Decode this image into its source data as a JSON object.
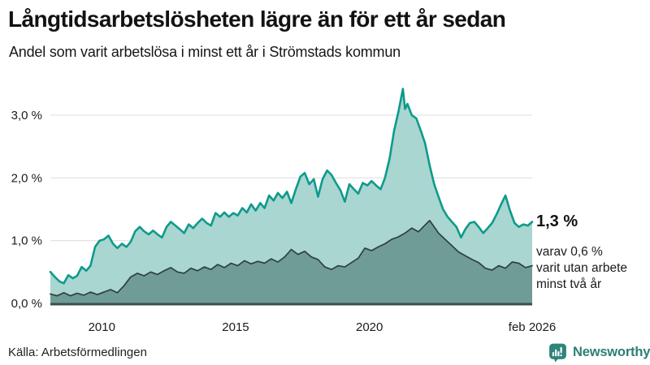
{
  "header": {
    "title": "Långtidsarbetslösheten lägre än för ett år sedan",
    "subtitle": "Andel som varit arbetslösa i minst ett år i Strömstads kommun"
  },
  "chart_data": {
    "type": "area",
    "title": "Långtidsarbetslösheten lägre än för ett år sedan",
    "subtitle": "Andel som varit arbetslösa i minst ett år i Strömstads kommun",
    "x_unit": "decimal_year (monthly data, feb 2008 - feb 2026)",
    "x_range": [
      2008.08,
      2026.08
    ],
    "ylim": [
      0,
      3.5
    ],
    "grid": true,
    "legend_position": "none (direct labels at line end)",
    "y_ticks": [
      {
        "value": 0,
        "label": "0,0 %"
      },
      {
        "value": 1,
        "label": "1,0 %"
      },
      {
        "value": 2,
        "label": "2,0 %"
      },
      {
        "value": 3,
        "label": "3,0 %"
      }
    ],
    "x_ticks": [
      {
        "value": 2010,
        "label": "2010"
      },
      {
        "value": 2015,
        "label": "2015"
      },
      {
        "value": 2020,
        "label": "2020"
      },
      {
        "value": 2026.08,
        "label": "feb 2026"
      }
    ],
    "series": [
      {
        "name": "Andel arbetslösa minst ett år",
        "end_value_pct": 1.3,
        "line_color": "#0e9a8c",
        "fill_color": "#a9d6d0",
        "points": [
          [
            2008.08,
            0.5
          ],
          [
            2008.25,
            0.42
          ],
          [
            2008.42,
            0.35
          ],
          [
            2008.58,
            0.32
          ],
          [
            2008.75,
            0.45
          ],
          [
            2008.92,
            0.4
          ],
          [
            2009.08,
            0.44
          ],
          [
            2009.25,
            0.58
          ],
          [
            2009.42,
            0.52
          ],
          [
            2009.58,
            0.6
          ],
          [
            2009.75,
            0.9
          ],
          [
            2009.92,
            1.0
          ],
          [
            2010.08,
            1.02
          ],
          [
            2010.25,
            1.08
          ],
          [
            2010.42,
            0.95
          ],
          [
            2010.58,
            0.88
          ],
          [
            2010.75,
            0.95
          ],
          [
            2010.92,
            0.9
          ],
          [
            2011.08,
            0.98
          ],
          [
            2011.25,
            1.15
          ],
          [
            2011.42,
            1.22
          ],
          [
            2011.58,
            1.15
          ],
          [
            2011.75,
            1.1
          ],
          [
            2011.92,
            1.16
          ],
          [
            2012.08,
            1.1
          ],
          [
            2012.25,
            1.05
          ],
          [
            2012.42,
            1.22
          ],
          [
            2012.58,
            1.3
          ],
          [
            2012.75,
            1.24
          ],
          [
            2012.92,
            1.18
          ],
          [
            2013.08,
            1.12
          ],
          [
            2013.25,
            1.26
          ],
          [
            2013.42,
            1.2
          ],
          [
            2013.58,
            1.28
          ],
          [
            2013.75,
            1.35
          ],
          [
            2013.92,
            1.28
          ],
          [
            2014.08,
            1.24
          ],
          [
            2014.25,
            1.44
          ],
          [
            2014.42,
            1.38
          ],
          [
            2014.58,
            1.45
          ],
          [
            2014.75,
            1.38
          ],
          [
            2014.92,
            1.44
          ],
          [
            2015.08,
            1.4
          ],
          [
            2015.25,
            1.52
          ],
          [
            2015.42,
            1.45
          ],
          [
            2015.58,
            1.58
          ],
          [
            2015.75,
            1.48
          ],
          [
            2015.92,
            1.6
          ],
          [
            2016.08,
            1.52
          ],
          [
            2016.25,
            1.72
          ],
          [
            2016.42,
            1.64
          ],
          [
            2016.58,
            1.76
          ],
          [
            2016.75,
            1.68
          ],
          [
            2016.92,
            1.78
          ],
          [
            2017.08,
            1.6
          ],
          [
            2017.25,
            1.82
          ],
          [
            2017.42,
            2.02
          ],
          [
            2017.58,
            2.08
          ],
          [
            2017.75,
            1.9
          ],
          [
            2017.92,
            1.98
          ],
          [
            2018.08,
            1.7
          ],
          [
            2018.25,
            1.98
          ],
          [
            2018.42,
            2.12
          ],
          [
            2018.58,
            2.05
          ],
          [
            2018.75,
            1.92
          ],
          [
            2018.92,
            1.8
          ],
          [
            2019.08,
            1.62
          ],
          [
            2019.25,
            1.9
          ],
          [
            2019.42,
            1.82
          ],
          [
            2019.58,
            1.75
          ],
          [
            2019.75,
            1.92
          ],
          [
            2019.92,
            1.88
          ],
          [
            2020.08,
            1.95
          ],
          [
            2020.25,
            1.88
          ],
          [
            2020.42,
            1.82
          ],
          [
            2020.58,
            2.0
          ],
          [
            2020.75,
            2.3
          ],
          [
            2020.92,
            2.75
          ],
          [
            2021.08,
            3.05
          ],
          [
            2021.25,
            3.42
          ],
          [
            2021.33,
            3.1
          ],
          [
            2021.42,
            3.18
          ],
          [
            2021.58,
            3.0
          ],
          [
            2021.75,
            2.95
          ],
          [
            2021.92,
            2.75
          ],
          [
            2022.08,
            2.55
          ],
          [
            2022.25,
            2.2
          ],
          [
            2022.42,
            1.9
          ],
          [
            2022.58,
            1.7
          ],
          [
            2022.75,
            1.5
          ],
          [
            2022.92,
            1.38
          ],
          [
            2023.08,
            1.3
          ],
          [
            2023.25,
            1.22
          ],
          [
            2023.42,
            1.05
          ],
          [
            2023.58,
            1.18
          ],
          [
            2023.75,
            1.28
          ],
          [
            2023.92,
            1.3
          ],
          [
            2024.08,
            1.22
          ],
          [
            2024.25,
            1.12
          ],
          [
            2024.42,
            1.2
          ],
          [
            2024.58,
            1.28
          ],
          [
            2024.75,
            1.42
          ],
          [
            2024.92,
            1.58
          ],
          [
            2025.08,
            1.72
          ],
          [
            2025.25,
            1.48
          ],
          [
            2025.42,
            1.28
          ],
          [
            2025.58,
            1.22
          ],
          [
            2025.75,
            1.26
          ],
          [
            2025.92,
            1.24
          ],
          [
            2026.08,
            1.3
          ]
        ]
      },
      {
        "name": "Andel arbetslösa minst två år",
        "end_value_pct": 0.6,
        "line_color": "#2f403c",
        "fill_color": "#6f9c96",
        "points": [
          [
            2008.08,
            0.15
          ],
          [
            2008.33,
            0.12
          ],
          [
            2008.58,
            0.17
          ],
          [
            2008.83,
            0.12
          ],
          [
            2009.08,
            0.16
          ],
          [
            2009.33,
            0.13
          ],
          [
            2009.58,
            0.18
          ],
          [
            2009.83,
            0.14
          ],
          [
            2010.08,
            0.18
          ],
          [
            2010.33,
            0.22
          ],
          [
            2010.58,
            0.17
          ],
          [
            2010.83,
            0.28
          ],
          [
            2011.08,
            0.42
          ],
          [
            2011.33,
            0.48
          ],
          [
            2011.58,
            0.44
          ],
          [
            2011.83,
            0.5
          ],
          [
            2012.08,
            0.46
          ],
          [
            2012.33,
            0.52
          ],
          [
            2012.58,
            0.57
          ],
          [
            2012.83,
            0.5
          ],
          [
            2013.08,
            0.48
          ],
          [
            2013.33,
            0.56
          ],
          [
            2013.58,
            0.52
          ],
          [
            2013.83,
            0.58
          ],
          [
            2014.08,
            0.54
          ],
          [
            2014.33,
            0.62
          ],
          [
            2014.58,
            0.57
          ],
          [
            2014.83,
            0.64
          ],
          [
            2015.08,
            0.6
          ],
          [
            2015.33,
            0.68
          ],
          [
            2015.58,
            0.63
          ],
          [
            2015.83,
            0.67
          ],
          [
            2016.08,
            0.64
          ],
          [
            2016.33,
            0.71
          ],
          [
            2016.58,
            0.66
          ],
          [
            2016.83,
            0.74
          ],
          [
            2017.08,
            0.86
          ],
          [
            2017.33,
            0.78
          ],
          [
            2017.58,
            0.83
          ],
          [
            2017.83,
            0.74
          ],
          [
            2018.08,
            0.7
          ],
          [
            2018.33,
            0.58
          ],
          [
            2018.58,
            0.54
          ],
          [
            2018.83,
            0.6
          ],
          [
            2019.08,
            0.58
          ],
          [
            2019.33,
            0.65
          ],
          [
            2019.58,
            0.72
          ],
          [
            2019.83,
            0.88
          ],
          [
            2020.08,
            0.84
          ],
          [
            2020.33,
            0.9
          ],
          [
            2020.58,
            0.95
          ],
          [
            2020.83,
            1.02
          ],
          [
            2021.08,
            1.06
          ],
          [
            2021.33,
            1.12
          ],
          [
            2021.58,
            1.2
          ],
          [
            2021.83,
            1.14
          ],
          [
            2022.08,
            1.25
          ],
          [
            2022.25,
            1.32
          ],
          [
            2022.42,
            1.22
          ],
          [
            2022.58,
            1.12
          ],
          [
            2022.83,
            1.02
          ],
          [
            2023.08,
            0.92
          ],
          [
            2023.33,
            0.82
          ],
          [
            2023.58,
            0.76
          ],
          [
            2023.83,
            0.7
          ],
          [
            2024.08,
            0.65
          ],
          [
            2024.33,
            0.56
          ],
          [
            2024.58,
            0.53
          ],
          [
            2024.83,
            0.6
          ],
          [
            2025.08,
            0.56
          ],
          [
            2025.33,
            0.66
          ],
          [
            2025.58,
            0.64
          ],
          [
            2025.83,
            0.57
          ],
          [
            2026.08,
            0.6
          ]
        ]
      }
    ],
    "annotations": [
      {
        "text": "1,3 %",
        "target": "end of series 'minst ett år'",
        "style": "bold"
      },
      {
        "text": "varav 0,6 %\nvarit utan arbete\nminst två år",
        "target": "end of series 'minst två år'"
      }
    ]
  },
  "annotation_labels": {
    "end_value": "1,3 %",
    "secondary": "varav 0,6 %\nvarit utan arbete\nminst två år"
  },
  "footer": {
    "source": "Källa: Arbetsförmedlingen",
    "brand": "Newsworthy"
  },
  "colors": {
    "accent_teal": "#0e9a8c",
    "light_fill": "#a9d6d0",
    "dark_fill": "#6f9c96",
    "dark_line": "#2f403c",
    "baseline": "#3d4e4a",
    "gridline": "#e4e4e4",
    "text": "#1b1b1b",
    "brand_teal": "#2c7f75",
    "logo_bg": "#2e857a"
  }
}
